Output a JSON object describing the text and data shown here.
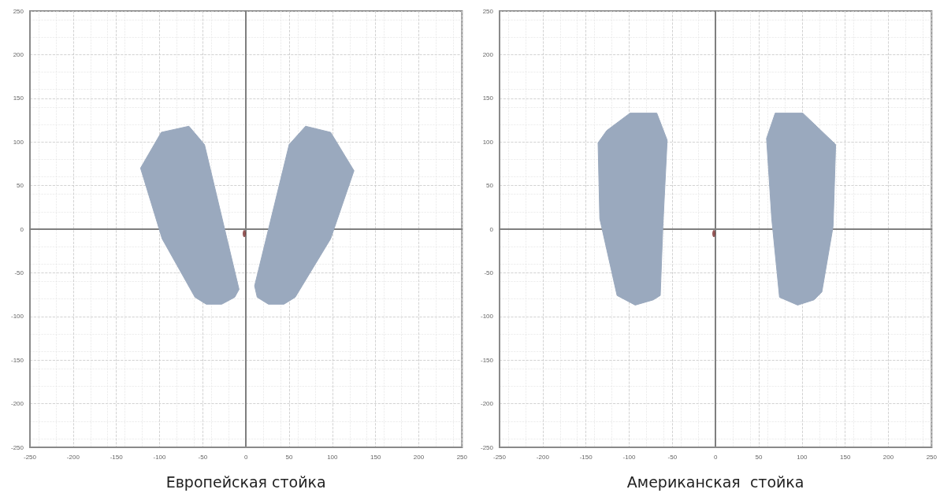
{
  "chart_data": [
    {
      "type": "area",
      "xlabel": "Европейская стойка",
      "xlim": [
        -250,
        250
      ],
      "ylim": [
        -250,
        250
      ],
      "xticks": [
        -250,
        -200,
        -150,
        -100,
        -50,
        0,
        50,
        100,
        150,
        200,
        250
      ],
      "yticks": [
        -250,
        -200,
        -150,
        -100,
        -50,
        0,
        50,
        100,
        150,
        200,
        250
      ],
      "grid": true,
      "series": [
        {
          "color": "#9aa9be",
          "x": [
            -122,
            -98,
            -66,
            -48,
            -8,
            -13,
            -28,
            -46,
            -59,
            -97,
            -122
          ],
          "values": [
            70,
            111,
            118,
            97,
            -69,
            -78,
            -86,
            -86,
            -78,
            -11,
            70
          ]
        },
        {
          "color": "#9aa9be",
          "x": [
            69,
            98,
            125,
            98,
            57,
            44,
            26,
            13,
            10,
            50,
            69
          ],
          "values": [
            118,
            111,
            67,
            -11,
            -78,
            -86,
            -86,
            -78,
            -65,
            97,
            118
          ]
        },
        {
          "type": "scatter",
          "color": "#7a2e2e",
          "x": [
            -2
          ],
          "values": [
            -5
          ]
        }
      ]
    },
    {
      "type": "area",
      "xlabel": "Американская  стойка",
      "xlim": [
        -250,
        250
      ],
      "ylim": [
        -250,
        250
      ],
      "xticks": [
        -250,
        -200,
        -150,
        -100,
        -50,
        0,
        50,
        100,
        150,
        200,
        250
      ],
      "yticks": [
        -250,
        -200,
        -150,
        -100,
        -50,
        0,
        50,
        100,
        150,
        200,
        250
      ],
      "grid": true,
      "series": [
        {
          "color": "#9aa9be",
          "x": [
            -99,
            -68,
            -56,
            -61,
            -64,
            -72,
            -93,
            -114,
            -134,
            -136,
            -126,
            -99
          ],
          "values": [
            133,
            133,
            102,
            3,
            -76,
            -81,
            -87,
            -76,
            12,
            99,
            113,
            133
          ]
        },
        {
          "color": "#9aa9be",
          "x": [
            69,
            101,
            139,
            136,
            123,
            114,
            95,
            74,
            65,
            59,
            69
          ],
          "values": [
            133,
            133,
            97,
            3,
            -72,
            -81,
            -87,
            -78,
            12,
            104,
            133
          ]
        },
        {
          "type": "scatter",
          "color": "#7a2e2e",
          "x": [
            -2
          ],
          "values": [
            -5
          ]
        }
      ]
    }
  ]
}
